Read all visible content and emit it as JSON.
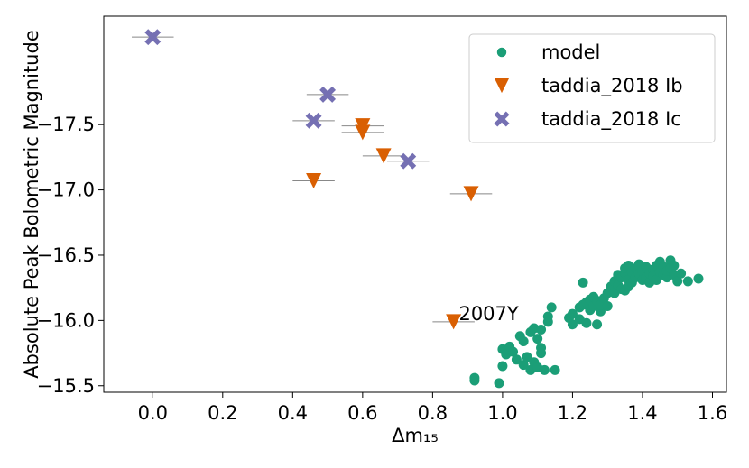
{
  "chart_data": {
    "type": "scatter",
    "title": "",
    "xlabel": "Δm₁₅",
    "ylabel": "Absolute Peak Bolometric Magnitude",
    "xlim": [
      -0.14,
      1.64
    ],
    "ylim": [
      -15.45,
      -18.33
    ],
    "y_inverted": true,
    "xticks": [
      0.0,
      0.2,
      0.4,
      0.6,
      0.8,
      1.0,
      1.2,
      1.4,
      1.6
    ],
    "xtick_labels": [
      "0.0",
      "0.2",
      "0.4",
      "0.6",
      "0.8",
      "1.0",
      "1.2",
      "1.4",
      "1.6"
    ],
    "yticks": [
      -15.5,
      -16.0,
      -16.5,
      -17.0,
      -17.5
    ],
    "ytick_labels": [
      "−15.5",
      "−16.0",
      "−16.5",
      "−17.0",
      "−17.5"
    ],
    "grid": false,
    "legend_position": "top-right",
    "annotations": [
      {
        "text": "2007Y",
        "x": 0.875,
        "y": -16.05
      }
    ],
    "series": [
      {
        "name": "model",
        "marker": "circle",
        "color": "#1b9e77",
        "points": [
          [
            0.92,
            -15.54
          ],
          [
            0.92,
            -15.56
          ],
          [
            0.99,
            -15.52
          ],
          [
            1.0,
            -15.65
          ],
          [
            1.0,
            -15.78
          ],
          [
            1.01,
            -15.74
          ],
          [
            1.02,
            -15.8
          ],
          [
            1.03,
            -15.76
          ],
          [
            1.04,
            -15.7
          ],
          [
            1.05,
            -15.88
          ],
          [
            1.06,
            -15.84
          ],
          [
            1.06,
            -15.66
          ],
          [
            1.07,
            -15.72
          ],
          [
            1.08,
            -15.62
          ],
          [
            1.08,
            -15.91
          ],
          [
            1.09,
            -15.94
          ],
          [
            1.09,
            -15.68
          ],
          [
            1.1,
            -15.86
          ],
          [
            1.1,
            -15.64
          ],
          [
            1.11,
            -15.75
          ],
          [
            1.11,
            -15.79
          ],
          [
            1.11,
            -15.93
          ],
          [
            1.12,
            -15.62
          ],
          [
            1.13,
            -16.03
          ],
          [
            1.13,
            -15.99
          ],
          [
            1.14,
            -16.1
          ],
          [
            1.15,
            -15.62
          ],
          [
            1.19,
            -16.02
          ],
          [
            1.2,
            -16.05
          ],
          [
            1.2,
            -15.97
          ],
          [
            1.22,
            -16.1
          ],
          [
            1.22,
            -16.01
          ],
          [
            1.23,
            -16.12
          ],
          [
            1.23,
            -16.29
          ],
          [
            1.24,
            -16.14
          ],
          [
            1.24,
            -15.98
          ],
          [
            1.25,
            -16.08
          ],
          [
            1.25,
            -16.16
          ],
          [
            1.26,
            -16.18
          ],
          [
            1.26,
            -16.11
          ],
          [
            1.27,
            -16.15
          ],
          [
            1.27,
            -15.97
          ],
          [
            1.28,
            -16.07
          ],
          [
            1.28,
            -16.12
          ],
          [
            1.29,
            -16.17
          ],
          [
            1.3,
            -16.11
          ],
          [
            1.3,
            -16.21
          ],
          [
            1.31,
            -16.26
          ],
          [
            1.32,
            -16.3
          ],
          [
            1.32,
            -16.21
          ],
          [
            1.33,
            -16.27
          ],
          [
            1.33,
            -16.35
          ],
          [
            1.34,
            -16.24
          ],
          [
            1.34,
            -16.33
          ],
          [
            1.35,
            -16.36
          ],
          [
            1.35,
            -16.23
          ],
          [
            1.35,
            -16.4
          ],
          [
            1.36,
            -16.31
          ],
          [
            1.36,
            -16.26
          ],
          [
            1.36,
            -16.42
          ],
          [
            1.37,
            -16.29
          ],
          [
            1.37,
            -16.37
          ],
          [
            1.38,
            -16.33
          ],
          [
            1.38,
            -16.4
          ],
          [
            1.39,
            -16.36
          ],
          [
            1.39,
            -16.43
          ],
          [
            1.4,
            -16.31
          ],
          [
            1.4,
            -16.38
          ],
          [
            1.41,
            -16.33
          ],
          [
            1.41,
            -16.41
          ],
          [
            1.42,
            -16.36
          ],
          [
            1.42,
            -16.29
          ],
          [
            1.43,
            -16.39
          ],
          [
            1.43,
            -16.34
          ],
          [
            1.44,
            -16.42
          ],
          [
            1.44,
            -16.31
          ],
          [
            1.45,
            -16.37
          ],
          [
            1.45,
            -16.45
          ],
          [
            1.46,
            -16.35
          ],
          [
            1.46,
            -16.41
          ],
          [
            1.47,
            -16.33
          ],
          [
            1.47,
            -16.38
          ],
          [
            1.48,
            -16.46
          ],
          [
            1.48,
            -16.4
          ],
          [
            1.49,
            -16.35
          ],
          [
            1.49,
            -16.42
          ],
          [
            1.5,
            -16.3
          ],
          [
            1.51,
            -16.36
          ],
          [
            1.53,
            -16.3
          ],
          [
            1.56,
            -16.32
          ]
        ]
      },
      {
        "name": "taddia_2018 Ib",
        "marker": "triangle-down",
        "color": "#d95f02",
        "xerr": 0.06,
        "points": [
          [
            0.46,
            -17.07
          ],
          [
            0.6,
            -17.49
          ],
          [
            0.6,
            -17.44
          ],
          [
            0.66,
            -17.26
          ],
          [
            0.91,
            -16.97
          ],
          [
            0.86,
            -15.99
          ]
        ]
      },
      {
        "name": "taddia_2018 Ic",
        "marker": "x",
        "color": "#7570b3",
        "xerr": 0.06,
        "points": [
          [
            0.0,
            -18.17
          ],
          [
            0.5,
            -17.73
          ],
          [
            0.46,
            -17.53
          ],
          [
            0.73,
            -17.22
          ]
        ]
      }
    ]
  }
}
